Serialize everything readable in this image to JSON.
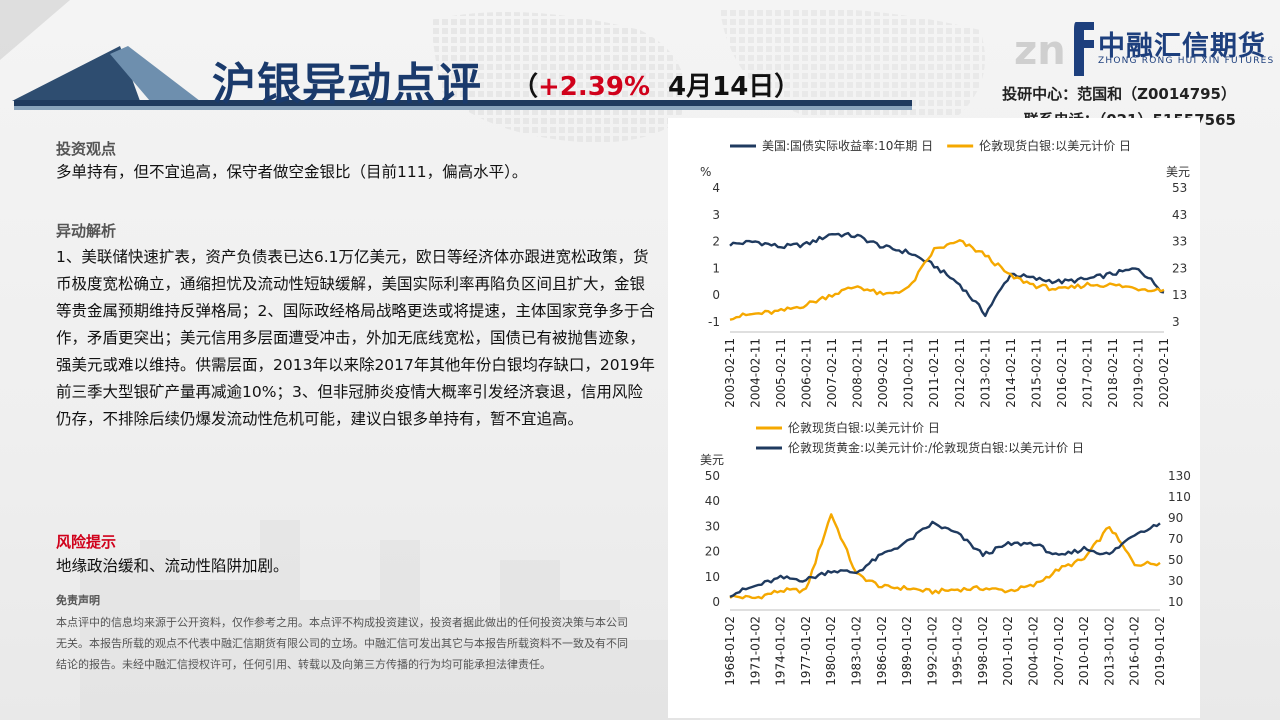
{
  "header": {
    "title": "沪银异动点评",
    "paren_open": "（",
    "change": "+2.39%",
    "date": "4月14日",
    "paren_close": "）",
    "contact_line1": "投研中心：范国和（Z0014795）",
    "contact_line2": "联系电话：（021）51557565"
  },
  "logo": {
    "name": "中融汇信期货",
    "english": "ZHONG RONG HUI XIN FUTURES",
    "brand_color": "#1d3f7d"
  },
  "view": {
    "heading": "投资观点",
    "text": "多单持有，但不宜追高，保守者做空金银比（目前111，偏高水平）。"
  },
  "analysis": {
    "heading": "异动解析",
    "text": "1、美联储快速扩表，资产负债表已达6.1万亿美元，欧日等经济体亦跟进宽松政策，货币极度宽松确立，通缩担忧及流动性短缺缓解，美国实际利率再陷负区间且扩大，金银等贵金属预期维持反弹格局；2、国际政经格局战略更迭或将提速，主体国家竞争多于合作，矛盾更突出；美元信用多层面遭受冲击，外加无底线宽松，国债已有被抛售迹象，强美元或难以维持。供需层面，2013年以来除2017年其他年份白银均存缺口，2019年前三季大型银矿产量再减逾10%；3、但非冠肺炎疫情大概率引发经济衰退，信用风险仍存，不排除后续仍爆发流动性危机可能，建议白银多单持有，暂不宜追高。"
  },
  "risk": {
    "heading": "风险提示",
    "text": "地缘政治缓和、流动性陷阱加剧。"
  },
  "disclaimer": {
    "heading": "免责声明",
    "text": "本点评中的信息均来源于公开资料，仅作参考之用。本点评不构成投资建议，投资者据此做出的任何投资决策与本公司无关。本报告所载的观点不代表中融汇信期货有限公司的立场。中融汇信可发出其它与本报告所载资料不一致及有不同结论的报告。未经中融汇信授权许可，任何引用、转载以及向第三方传播的行为均可能承担法律责任。"
  },
  "colors": {
    "navy": "#1f3a5f",
    "gold": "#f5a800",
    "title_blue": "#1a3a6c",
    "red": "#d0011b"
  },
  "chart_data": [
    {
      "type": "line",
      "title": "",
      "x": [
        "2003-02-11",
        "2004-02-11",
        "2005-02-11",
        "2006-02-11",
        "2007-02-11",
        "2008-02-11",
        "2009-02-11",
        "2010-02-11",
        "2011-02-11",
        "2012-02-11",
        "2013-02-11",
        "2014-02-11",
        "2015-02-11",
        "2016-02-11",
        "2017-02-11",
        "2018-02-11",
        "2019-02-11",
        "2020-02-11"
      ],
      "series": [
        {
          "name": "美国:国债实际收益率:10年期 日",
          "axis": "left",
          "color": "#1f3a5f",
          "values": [
            1.9,
            2.0,
            1.8,
            1.9,
            2.3,
            2.2,
            1.8,
            1.6,
            1.1,
            0.4,
            -0.7,
            0.8,
            0.6,
            0.5,
            0.6,
            0.8,
            1.0,
            0.1
          ]
        },
        {
          "name": "伦敦现货白银:以美元计价 日",
          "axis": "right",
          "color": "#f5a800",
          "values": [
            4.7,
            6.0,
            7.0,
            9.5,
            13.3,
            16.4,
            13.0,
            15.5,
            30.0,
            33.0,
            28.0,
            20.0,
            16.5,
            15.0,
            17.0,
            16.8,
            15.5,
            15.0
          ]
        }
      ],
      "ylabel_left": "%",
      "ylabel_right": "美元",
      "ylim_left": [
        -1,
        4
      ],
      "ylim_right": [
        3,
        53
      ],
      "yticks_left": [
        "4",
        "3",
        "2",
        "1",
        "0",
        "-1"
      ],
      "yticks_right": [
        "53",
        "43",
        "33",
        "23",
        "13",
        "3"
      ],
      "grid": false,
      "legend": "top"
    },
    {
      "type": "line",
      "title": "",
      "x": [
        "1968-01-02",
        "1971-01-02",
        "1974-01-02",
        "1977-01-02",
        "1980-01-02",
        "1983-01-02",
        "1986-01-02",
        "1989-01-02",
        "1992-01-02",
        "1995-01-02",
        "1998-01-02",
        "2001-01-02",
        "2004-01-02",
        "2007-01-02",
        "2010-01-02",
        "2013-01-02",
        "2016-01-02",
        "2019-01-02"
      ],
      "series": [
        {
          "name": "伦敦现货白银:以美元计价 日",
          "axis": "left",
          "color": "#f5a800",
          "values": [
            2.2,
            1.6,
            4.5,
            4.6,
            35.0,
            11.0,
            6.0,
            5.5,
            4.0,
            5.0,
            5.5,
            4.4,
            6.5,
            13.0,
            17.0,
            30.0,
            15.0,
            15.5
          ]
        },
        {
          "name": "伦敦现货黄金:以美元计价:/伦敦现货白银:以美元计价 日",
          "axis": "right",
          "color": "#1f3a5f",
          "values": [
            17,
            25,
            33,
            31,
            40,
            38,
            55,
            67,
            85,
            75,
            55,
            65,
            66,
            53,
            61,
            55,
            75,
            85
          ]
        }
      ],
      "ylabel_left": "美元",
      "ylabel_right": "",
      "ylim_left": [
        0,
        50
      ],
      "ylim_right": [
        10,
        130
      ],
      "yticks_left": [
        "50",
        "40",
        "30",
        "20",
        "10",
        "0"
      ],
      "yticks_right": [
        "130",
        "110",
        "90",
        "70",
        "50",
        "30",
        "10"
      ],
      "grid": false,
      "legend": "top"
    }
  ]
}
